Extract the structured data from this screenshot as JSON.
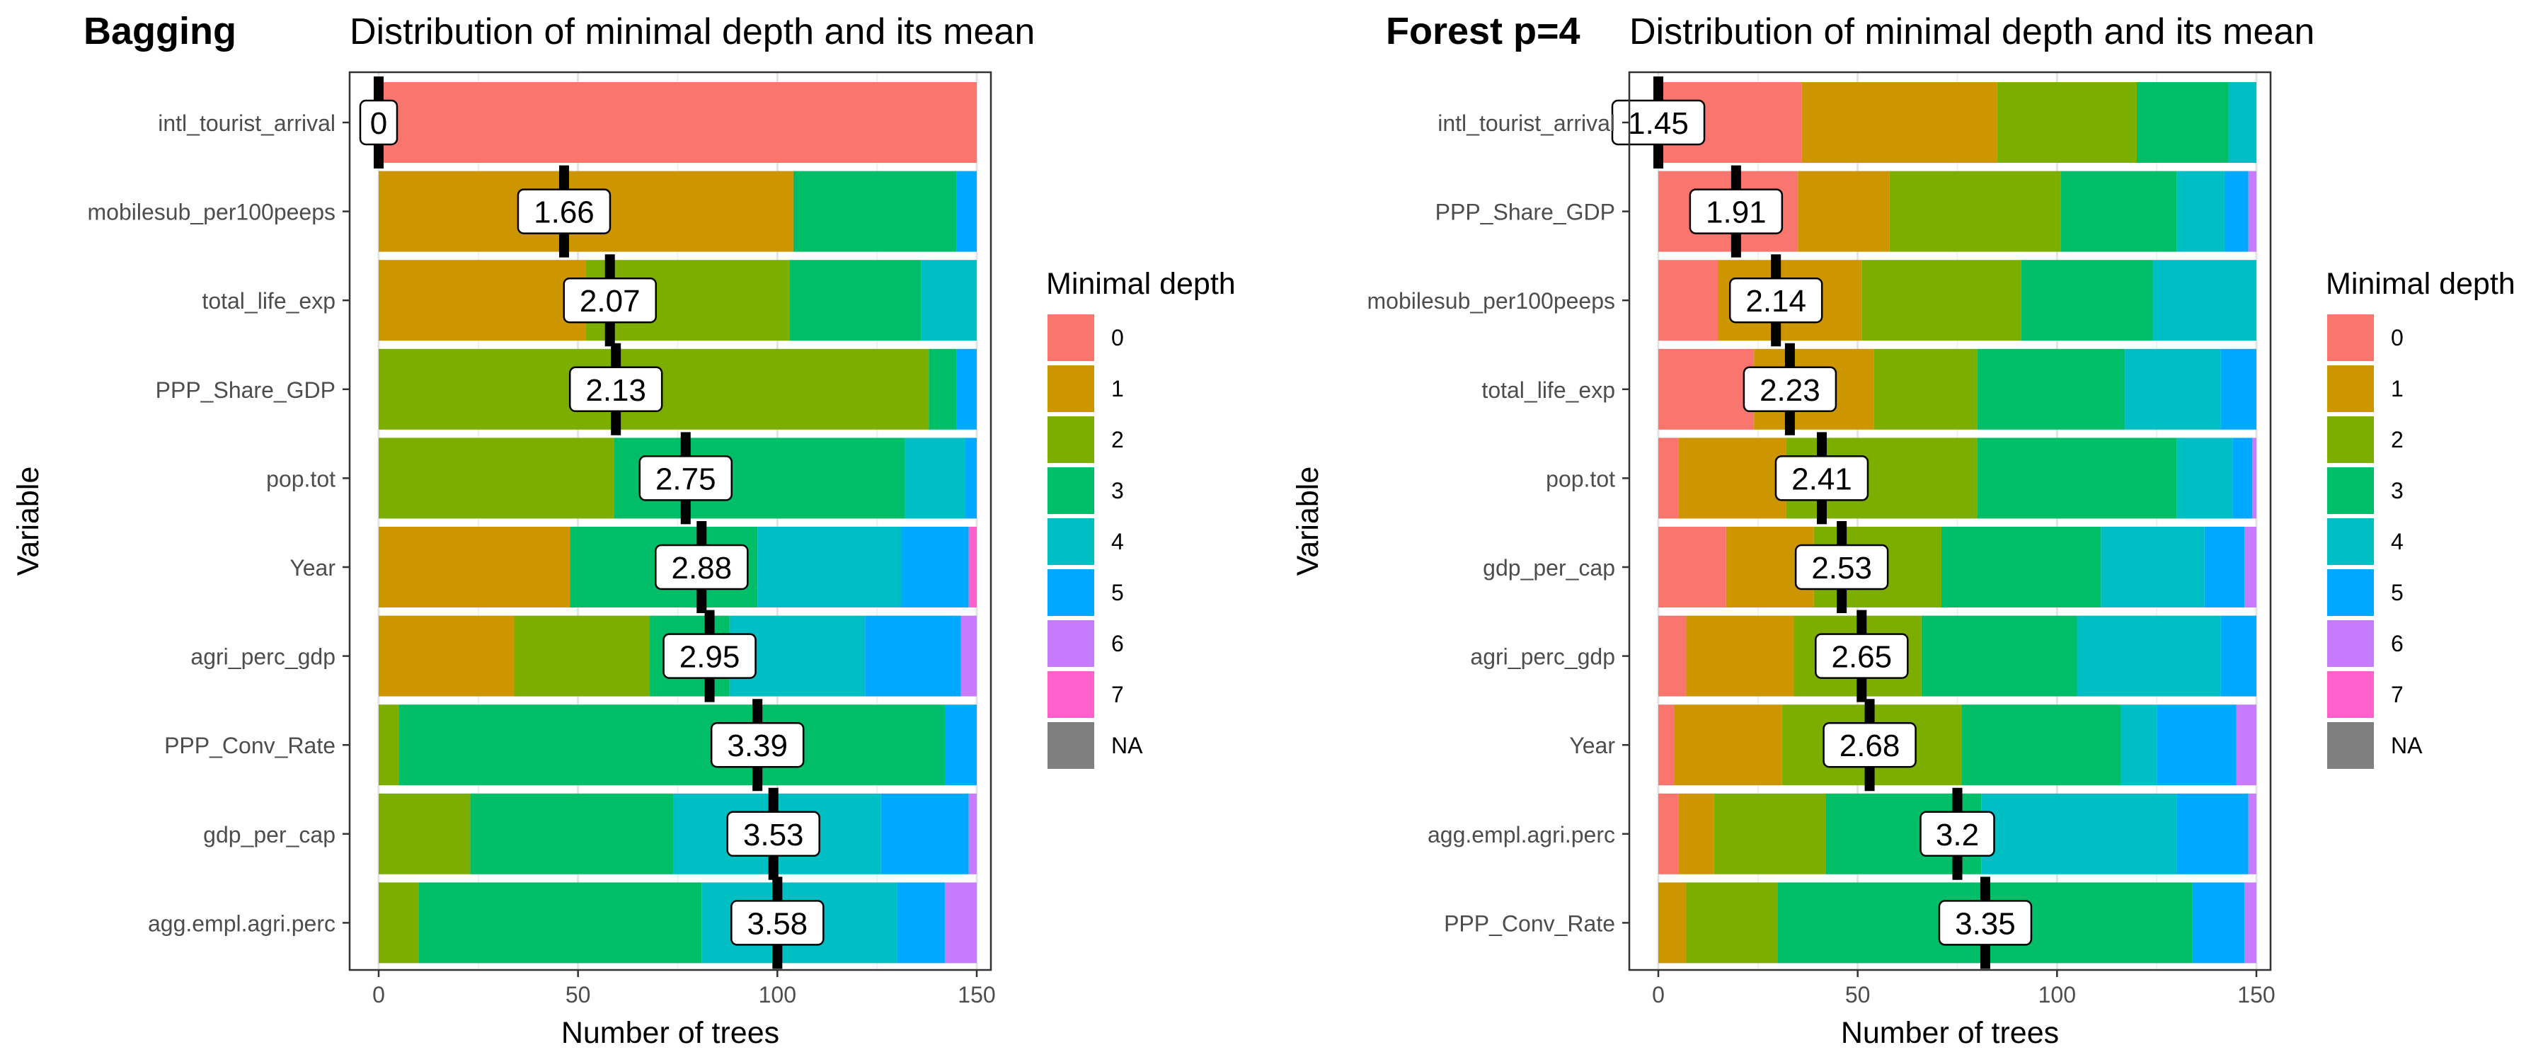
{
  "chart_data": [
    {
      "type": "bar",
      "orientation": "horizontal",
      "stacked": true,
      "tag": "Bagging",
      "title": "Distribution of minimal depth and its mean",
      "xlabel": "Number of trees",
      "ylabel": "Variable",
      "xlim": [
        0,
        150
      ],
      "xticks": [
        0,
        50,
        100,
        150
      ],
      "grid": true,
      "legend_position": "right",
      "legend_title": "Minimal depth",
      "categories": [
        "intl_tourist_arrival",
        "mobilesub_per100peeps",
        "total_life_exp",
        "PPP_Share_GDP",
        "pop.tot",
        "Year",
        "agri_perc_gdp",
        "PPP_Conv_Rate",
        "gdp_per_cap",
        "agg.empl.agri.perc"
      ],
      "series": [
        {
          "name": "0",
          "values": [
            150,
            0,
            0,
            0,
            0,
            0,
            0,
            0,
            0,
            0
          ]
        },
        {
          "name": "1",
          "values": [
            0,
            104,
            52,
            0,
            0,
            48,
            34,
            0,
            0,
            0
          ]
        },
        {
          "name": "2",
          "values": [
            0,
            0,
            51,
            138,
            59,
            0,
            34,
            5,
            23,
            10
          ]
        },
        {
          "name": "3",
          "values": [
            0,
            41,
            33,
            7,
            73,
            47,
            20,
            137,
            51,
            71
          ]
        },
        {
          "name": "4",
          "values": [
            0,
            0,
            14,
            0,
            15,
            36,
            34,
            0,
            52,
            49
          ]
        },
        {
          "name": "5",
          "values": [
            0,
            5,
            0,
            5,
            3,
            17,
            24,
            8,
            22,
            12
          ]
        },
        {
          "name": "6",
          "values": [
            0,
            0,
            0,
            0,
            0,
            0,
            4,
            0,
            2,
            8
          ]
        },
        {
          "name": "7",
          "values": [
            0,
            0,
            0,
            0,
            0,
            2,
            0,
            0,
            0,
            0
          ]
        },
        {
          "name": "NA",
          "values": [
            0,
            0,
            0,
            0,
            0,
            0,
            0,
            0,
            0,
            0
          ]
        }
      ],
      "mean_labels": [
        "0",
        "1.66",
        "2.07",
        "2.13",
        "2.75",
        "2.88",
        "2.95",
        "3.39",
        "3.53",
        "3.58"
      ],
      "mean_positions": [
        0,
        46.5,
        58,
        59.5,
        77,
        81,
        83,
        95,
        99,
        100
      ]
    },
    {
      "type": "bar",
      "orientation": "horizontal",
      "stacked": true,
      "tag": "Forest p=4",
      "title": "Distribution of minimal depth and its mean",
      "xlabel": "Number of trees",
      "ylabel": "Variable",
      "xlim": [
        0,
        150
      ],
      "xticks": [
        0,
        50,
        100,
        150
      ],
      "grid": true,
      "legend_position": "right",
      "legend_title": "Minimal depth",
      "categories": [
        "intl_tourist_arrival",
        "PPP_Share_GDP",
        "mobilesub_per100peeps",
        "total_life_exp",
        "pop.tot",
        "gdp_per_cap",
        "agri_perc_gdp",
        "Year",
        "agg.empl.agri.perc",
        "PPP_Conv_Rate"
      ],
      "series": [
        {
          "name": "0",
          "values": [
            36,
            35,
            15,
            24,
            5,
            17,
            7,
            4,
            5,
            0
          ]
        },
        {
          "name": "1",
          "values": [
            49,
            23,
            36,
            30,
            27,
            22,
            27,
            27,
            9,
            7
          ]
        },
        {
          "name": "2",
          "values": [
            35,
            43,
            40,
            26,
            48,
            32,
            32,
            45,
            28,
            23
          ]
        },
        {
          "name": "3",
          "values": [
            23,
            29,
            33,
            37,
            50,
            40,
            39,
            40,
            39,
            104
          ]
        },
        {
          "name": "4",
          "values": [
            7,
            12,
            26,
            24,
            14,
            26,
            36,
            9,
            49,
            0
          ]
        },
        {
          "name": "5",
          "values": [
            0,
            6,
            0,
            9,
            5,
            10,
            9,
            20,
            18,
            13
          ]
        },
        {
          "name": "6",
          "values": [
            0,
            2,
            0,
            0,
            1,
            3,
            0,
            5,
            2,
            3
          ]
        },
        {
          "name": "7",
          "values": [
            0,
            0,
            0,
            0,
            0,
            0,
            0,
            0,
            0,
            0
          ]
        },
        {
          "name": "NA",
          "values": [
            0,
            0,
            0,
            0,
            0,
            0,
            0,
            0,
            0,
            0
          ]
        }
      ],
      "mean_labels": [
        "1.45",
        "1.91",
        "2.14",
        "2.23",
        "2.41",
        "2.53",
        "2.65",
        "2.68",
        "3.2",
        "3.35"
      ],
      "mean_positions": [
        0,
        19.5,
        29.5,
        33,
        41,
        46,
        51,
        53,
        75,
        82
      ]
    }
  ],
  "colors": {
    "0": "#F8766D",
    "1": "#CD9600",
    "2": "#7CAE00",
    "3": "#00BE67",
    "4": "#00BFC4",
    "5": "#00A9FF",
    "6": "#C77CFF",
    "7": "#FF61CC",
    "NA": "#7F7F7F"
  }
}
